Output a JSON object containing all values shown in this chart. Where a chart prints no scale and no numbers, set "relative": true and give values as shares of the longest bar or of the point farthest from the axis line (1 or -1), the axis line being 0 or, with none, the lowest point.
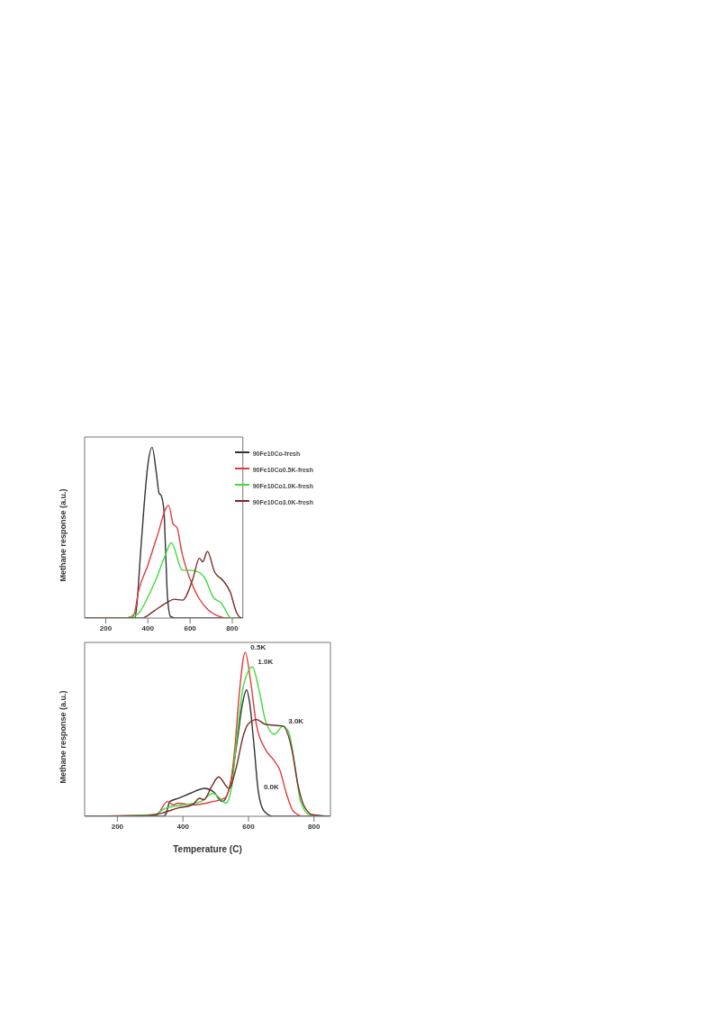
{
  "chart_data": [
    {
      "type": "line",
      "ylabel": "Methane response (a.u.)",
      "relative": true,
      "xlim": [
        100,
        850
      ],
      "xticks": [
        200,
        400,
        600,
        800
      ],
      "tick_labels": "x",
      "legend": "top right",
      "grid": false,
      "series": [
        {
          "name": "90Fe10Co-fresh",
          "color": "#333333",
          "x": [
            100,
            300,
            338,
            347,
            364,
            382,
            400,
            420,
            440,
            453,
            462,
            476,
            484,
            493,
            507,
            530,
            850
          ],
          "values": [
            0,
            0,
            0,
            0.07,
            0.36,
            0.66,
            0.9,
            1.0,
            0.85,
            0.73,
            0.72,
            0.63,
            0.39,
            0.12,
            0.01,
            0,
            0
          ]
        },
        {
          "name": "90Fe10Co0.5K-fresh",
          "color": "#e03c3c",
          "x": [
            100,
            300,
            333,
            356,
            400,
            444,
            498,
            520,
            538,
            560,
            596,
            640,
            684,
            738,
            782,
            850
          ],
          "values": [
            0,
            0,
            0.02,
            0.16,
            0.31,
            0.48,
            0.66,
            0.55,
            0.53,
            0.39,
            0.24,
            0.12,
            0.05,
            0.01,
            0,
            0
          ]
        },
        {
          "name": "90Fe10Co1.0K-fresh",
          "color": "#3ddc3d",
          "x": [
            100,
            270,
            333,
            364,
            391,
            436,
            480,
            511,
            564,
            596,
            640,
            667,
            711,
            747,
            796,
            850
          ],
          "values": [
            0,
            0,
            0.01,
            0.04,
            0.1,
            0.22,
            0.36,
            0.44,
            0.28,
            0.28,
            0.27,
            0.24,
            0.12,
            0.09,
            0,
            0
          ]
        },
        {
          "name": "90Fe10Co3.0K-fresh",
          "color": "#7a2a2a",
          "x": [
            100,
            373,
            427,
            489,
            524,
            564,
            613,
            644,
            660,
            682,
            716,
            756,
            791,
            818,
            836,
            850
          ],
          "values": [
            0,
            0,
            0.04,
            0.09,
            0.11,
            0.105,
            0.23,
            0.35,
            0.33,
            0.39,
            0.27,
            0.22,
            0.15,
            0.04,
            0.005,
            0
          ]
        }
      ]
    },
    {
      "type": "line",
      "ylabel": "Methane response (a.u.)",
      "xlabel": "Temperature (C)",
      "relative": true,
      "xlim": [
        100,
        850
      ],
      "xticks": [
        200,
        400,
        600,
        800
      ],
      "tick_labels": "x",
      "grid": false,
      "annotations": [
        {
          "text": "0.5K",
          "x": 590,
          "y": 1.0
        },
        {
          "text": "1.0K",
          "x": 612,
          "y": 0.91
        },
        {
          "text": "3.0K",
          "x": 705,
          "y": 0.55
        },
        {
          "text": "0.0K",
          "x": 630,
          "y": 0.15
        }
      ],
      "series": [
        {
          "color": "#333333",
          "x": [
            100,
            340,
            347,
            360,
            387,
            422,
            467,
            493,
            520,
            547,
            565,
            581,
            594,
            603,
            616,
            630,
            648,
            675,
            850
          ],
          "values": [
            0,
            0,
            0.01,
            0.09,
            0.11,
            0.14,
            0.17,
            0.15,
            0.09,
            0.22,
            0.45,
            0.68,
            0.77,
            0.7,
            0.45,
            0.15,
            0.03,
            0,
            0
          ]
        },
        {
          "color": "#e03c3c",
          "x": [
            100,
            320,
            352,
            370,
            384,
            437,
            491,
            527,
            545,
            558,
            571,
            590,
            606,
            624,
            651,
            678,
            696,
            714,
            737,
            768,
            850
          ],
          "values": [
            0,
            0.01,
            0.09,
            0.07,
            0.08,
            0.07,
            0.09,
            0.11,
            0.2,
            0.41,
            0.73,
            1.0,
            0.83,
            0.56,
            0.41,
            0.34,
            0.28,
            0.15,
            0.03,
            0,
            0
          ]
        },
        {
          "color": "#3ddc3d",
          "x": [
            100,
            245,
            311,
            348,
            402,
            455,
            491,
            513,
            531,
            549,
            563,
            584,
            612,
            630,
            652,
            679,
            705,
            723,
            741,
            759,
            786,
            850
          ],
          "values": [
            0,
            0.005,
            0.01,
            0.05,
            0.07,
            0.09,
            0.14,
            0.11,
            0.08,
            0.18,
            0.45,
            0.79,
            0.91,
            0.79,
            0.58,
            0.5,
            0.55,
            0.51,
            0.32,
            0.09,
            0.01,
            0
          ]
        },
        {
          "color": "#7a2a2a",
          "x": [
            100,
            293,
            337,
            384,
            429,
            451,
            464,
            487,
            509,
            540,
            563,
            584,
            598,
            625,
            652,
            705,
            732,
            750,
            768,
            795,
            850
          ],
          "values": [
            0,
            0.005,
            0.02,
            0.05,
            0.07,
            0.11,
            0.1,
            0.18,
            0.24,
            0.17,
            0.3,
            0.49,
            0.56,
            0.59,
            0.56,
            0.55,
            0.41,
            0.2,
            0.07,
            0.01,
            0
          ]
        }
      ]
    }
  ]
}
